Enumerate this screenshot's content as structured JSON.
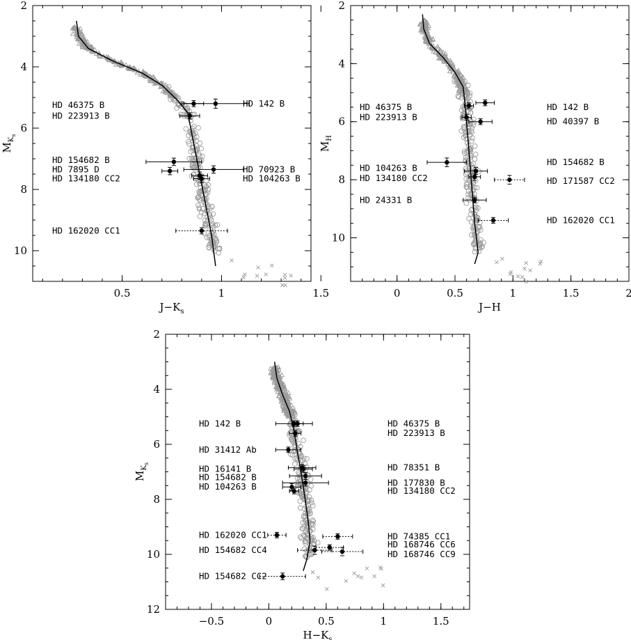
{
  "chart_data": [
    {
      "type": "scatter",
      "xlabel": "J−K",
      "xlabel_sub": "s",
      "ylabel": "M",
      "ylabel_sub": "K",
      "ylabel_subsub": "s",
      "xlim": [
        0.05,
        1.45
      ],
      "ylim": [
        11.0,
        2.0
      ],
      "xticks": [
        "0.5",
        "1",
        "1.5"
      ],
      "xtick_values": [
        0.5,
        1.0,
        1.5
      ],
      "yticks": [
        "2",
        "4",
        "6",
        "8",
        "10"
      ],
      "ytick_values": [
        2,
        4,
        6,
        8,
        10
      ],
      "isochrone": [
        [
          0.27,
          2.5
        ],
        [
          0.28,
          3.0
        ],
        [
          0.33,
          3.4
        ],
        [
          0.45,
          3.8
        ],
        [
          0.6,
          4.2
        ],
        [
          0.7,
          4.6
        ],
        [
          0.78,
          5.1
        ],
        [
          0.83,
          5.5
        ],
        [
          0.86,
          6.5
        ],
        [
          0.89,
          7.5
        ],
        [
          0.92,
          8.5
        ],
        [
          0.95,
          9.5
        ],
        [
          0.97,
          10.5
        ]
      ],
      "companions": [
        {
          "name": "HD 46375 B",
          "x": 0.86,
          "y": 5.2,
          "xerr": 0.05,
          "yerr": 0.1,
          "solid": true
        },
        {
          "name": "HD 142 B",
          "x": 0.97,
          "y": 5.2,
          "xerr": 0.17,
          "yerr": 0.15,
          "solid": true
        },
        {
          "name": "HD 223913 B",
          "x": 0.84,
          "y": 5.6,
          "xerr": 0.05,
          "yerr": 0.1,
          "solid": true
        },
        {
          "name": "HD 154682 B",
          "x": 0.76,
          "y": 7.1,
          "xerr": 0.14,
          "yerr": 0.12,
          "solid": true
        },
        {
          "name": "HD 7895 D",
          "x": 0.74,
          "y": 7.4,
          "xerr": 0.04,
          "yerr": 0.12,
          "solid": true
        },
        {
          "name": "HD 70923 B",
          "x": 0.96,
          "y": 7.35,
          "xerr": 0.15,
          "yerr": 0.12,
          "solid": true
        },
        {
          "name": "HD 134180 CC2",
          "x": 0.89,
          "y": 7.55,
          "xerr": 0.04,
          "yerr": 0.12,
          "solid": true
        },
        {
          "name": "HD 104263 B",
          "x": 0.9,
          "y": 7.65,
          "xerr": 0.04,
          "yerr": 0.12,
          "solid": true
        },
        {
          "name": "HD 162020 CC1",
          "x": 0.9,
          "y": 9.35,
          "xerr": 0.13,
          "yerr": 0.1,
          "solid": false
        }
      ],
      "labels_left": [
        "HD 46375 B",
        "HD 223913 B",
        "HD 154682 B",
        "HD 7895 D",
        "HD 134180 CC2",
        "HD 162020 CC1"
      ],
      "labels_left_y": [
        5.25,
        5.6,
        7.05,
        7.35,
        7.65,
        9.35
      ],
      "labels_right": [
        "HD 142 B",
        "HD 70923 B",
        "HD 104263 B"
      ],
      "labels_right_y": [
        5.2,
        7.35,
        7.65
      ]
    },
    {
      "type": "scatter",
      "xlabel": "J−H",
      "ylabel": "M",
      "ylabel_sub": "H",
      "xlim": [
        -0.4,
        2.0
      ],
      "ylim": [
        11.5,
        2.0
      ],
      "xticks": [
        "0",
        "0.5",
        "1",
        "1.5",
        "2"
      ],
      "xtick_values": [
        0,
        0.5,
        1.0,
        1.5,
        2.0
      ],
      "yticks": [
        "2",
        "4",
        "6",
        "8",
        "10"
      ],
      "ytick_values": [
        2,
        4,
        6,
        8,
        10
      ],
      "isochrone": [
        [
          0.22,
          2.3
        ],
        [
          0.23,
          2.8
        ],
        [
          0.28,
          3.3
        ],
        [
          0.4,
          3.8
        ],
        [
          0.5,
          4.3
        ],
        [
          0.57,
          4.8
        ],
        [
          0.59,
          5.5
        ],
        [
          0.61,
          6.5
        ],
        [
          0.63,
          7.5
        ],
        [
          0.65,
          8.5
        ],
        [
          0.67,
          9.5
        ],
        [
          0.7,
          10.5
        ],
        [
          0.67,
          10.9
        ]
      ],
      "companions": [
        {
          "name": "HD 142 B",
          "x": 0.76,
          "y": 5.35,
          "xerr": 0.08,
          "yerr": 0.1,
          "solid": true
        },
        {
          "name": "HD 46375 B",
          "x": 0.62,
          "y": 5.45,
          "xerr": 0.04,
          "yerr": 0.1,
          "solid": true
        },
        {
          "name": "HD 223913 B",
          "x": 0.6,
          "y": 5.85,
          "xerr": 0.04,
          "yerr": 0.1,
          "solid": true
        },
        {
          "name": "HD 40397 B",
          "x": 0.72,
          "y": 6.0,
          "xerr": 0.1,
          "yerr": 0.1,
          "solid": true
        },
        {
          "name": "HD 104263 B",
          "x": 0.43,
          "y": 7.4,
          "xerr": 0.17,
          "yerr": 0.15,
          "solid": true
        },
        {
          "name": "HD 154682 B",
          "x": 0.68,
          "y": 7.7,
          "xerr": 0.1,
          "yerr": 0.12,
          "solid": true
        },
        {
          "name": "HD 134180 CC2",
          "x": 0.67,
          "y": 7.9,
          "xerr": 0.05,
          "yerr": 0.12,
          "solid": true
        },
        {
          "name": "HD 171587 CC2",
          "x": 0.97,
          "y": 8.0,
          "xerr": 0.13,
          "yerr": 0.15,
          "solid": false
        },
        {
          "name": "HD 24331 B",
          "x": 0.67,
          "y": 8.7,
          "xerr": 0.1,
          "yerr": 0.1,
          "solid": true
        },
        {
          "name": "HD 162020 CC1",
          "x": 0.83,
          "y": 9.4,
          "xerr": 0.13,
          "yerr": 0.1,
          "solid": false
        }
      ],
      "labels_left": [
        "HD 46375 B",
        "HD 223913 B",
        "HD 104263 B",
        "HD 134180 CC2",
        "HD 24331 B"
      ],
      "labels_left_y": [
        5.5,
        5.85,
        7.6,
        7.95,
        8.7
      ],
      "labels_right": [
        "HD 142 B",
        "HD 40397 B",
        "HD 154682 B",
        "HD 171587 CC2",
        "HD 162020 CC1"
      ],
      "labels_right_y": [
        5.5,
        6.0,
        7.4,
        8.05,
        9.4
      ]
    },
    {
      "type": "scatter",
      "xlabel": "H−K",
      "xlabel_sub": "s",
      "ylabel": "M",
      "ylabel_sub": "K",
      "ylabel_subsub": "s",
      "xlim": [
        -0.9,
        1.75
      ],
      "ylim": [
        12.0,
        2.0
      ],
      "xticks": [
        "−0.5",
        "0",
        "0.5",
        "1",
        "1.5"
      ],
      "xtick_values": [
        -0.5,
        0,
        0.5,
        1.0,
        1.5
      ],
      "yticks": [
        "2",
        "4",
        "6",
        "8",
        "10",
        "12"
      ],
      "ytick_values": [
        2,
        4,
        6,
        8,
        10,
        12
      ],
      "isochrone": [
        [
          0.05,
          3.0
        ],
        [
          0.07,
          3.6
        ],
        [
          0.12,
          4.2
        ],
        [
          0.18,
          4.8
        ],
        [
          0.22,
          5.5
        ],
        [
          0.25,
          6.3
        ],
        [
          0.28,
          7.0
        ],
        [
          0.31,
          7.8
        ],
        [
          0.34,
          8.7
        ],
        [
          0.36,
          9.5
        ],
        [
          0.33,
          10.2
        ],
        [
          0.3,
          10.6
        ]
      ],
      "companions": [
        {
          "name": "HD 142 B",
          "x": 0.22,
          "y": 5.25,
          "xerr": 0.16,
          "yerr": 0.1,
          "solid": true
        },
        {
          "name": "HD 46375 B",
          "x": 0.25,
          "y": 5.25,
          "xerr": 0.05,
          "yerr": 0.1,
          "solid": true
        },
        {
          "name": "HD 223913 B",
          "x": 0.23,
          "y": 5.6,
          "xerr": 0.05,
          "yerr": 0.1,
          "solid": true
        },
        {
          "name": "HD 31412 Ab",
          "x": 0.17,
          "y": 6.2,
          "xerr": 0.11,
          "yerr": 0.1,
          "solid": true
        },
        {
          "name": "HD 16141 B",
          "x": 0.29,
          "y": 6.85,
          "xerr": 0.12,
          "yerr": 0.12,
          "solid": true
        },
        {
          "name": "HD 78351 B",
          "x": 0.3,
          "y": 6.9,
          "xerr": 0.08,
          "yerr": 0.12,
          "solid": true
        },
        {
          "name": "HD 154682 B",
          "x": 0.32,
          "y": 7.15,
          "xerr": 0.14,
          "yerr": 0.12,
          "solid": true
        },
        {
          "name": "HD 177830 B",
          "x": 0.32,
          "y": 7.4,
          "xerr": 0.2,
          "yerr": 0.12,
          "solid": true
        },
        {
          "name": "HD 104263 B",
          "x": 0.2,
          "y": 7.55,
          "xerr": 0.08,
          "yerr": 0.12,
          "solid": true
        },
        {
          "name": "HD 134180 CC2",
          "x": 0.22,
          "y": 7.7,
          "xerr": 0.04,
          "yerr": 0.1,
          "solid": true
        },
        {
          "name": "HD 162020 CC1",
          "x": 0.07,
          "y": 9.3,
          "xerr": 0.08,
          "yerr": 0.1,
          "solid": false
        },
        {
          "name": "HD 74385 CC1",
          "x": 0.6,
          "y": 9.35,
          "xerr": 0.13,
          "yerr": 0.1,
          "solid": false
        },
        {
          "name": "HD 168746 CC6",
          "x": 0.53,
          "y": 9.75,
          "xerr": 0.12,
          "yerr": 0.1,
          "solid": false
        },
        {
          "name": "HD 154682 CC4",
          "x": 0.4,
          "y": 9.85,
          "xerr": 0.15,
          "yerr": 0.15,
          "solid": false
        },
        {
          "name": "HD 168746 CC9",
          "x": 0.64,
          "y": 9.9,
          "xerr": 0.18,
          "yerr": 0.15,
          "solid": false
        },
        {
          "name": "HD 154682 CC2",
          "x": 0.12,
          "y": 10.8,
          "xerr": 0.2,
          "yerr": 0.12,
          "solid": false
        }
      ],
      "labels_left": [
        "HD 142 B",
        "HD 31412 Ab",
        "HD 16141 B",
        "HD 154682 B",
        "HD 104263 B",
        "HD 162020 CC1",
        "HD 154682 CC4",
        "HD 154682 CC2"
      ],
      "labels_left_y": [
        5.25,
        6.2,
        6.9,
        7.2,
        7.55,
        9.3,
        9.85,
        10.8
      ],
      "labels_right": [
        "HD 46375 B",
        "HD 223913 B",
        "HD 78351 B",
        "HD 177830 B",
        "HD 134180 CC2",
        "HD 74385 CC1",
        "HD 168746 CC6",
        "HD 168746 CC9"
      ],
      "labels_right_y": [
        5.25,
        5.6,
        6.85,
        7.4,
        7.7,
        9.35,
        9.65,
        10.0
      ]
    }
  ]
}
